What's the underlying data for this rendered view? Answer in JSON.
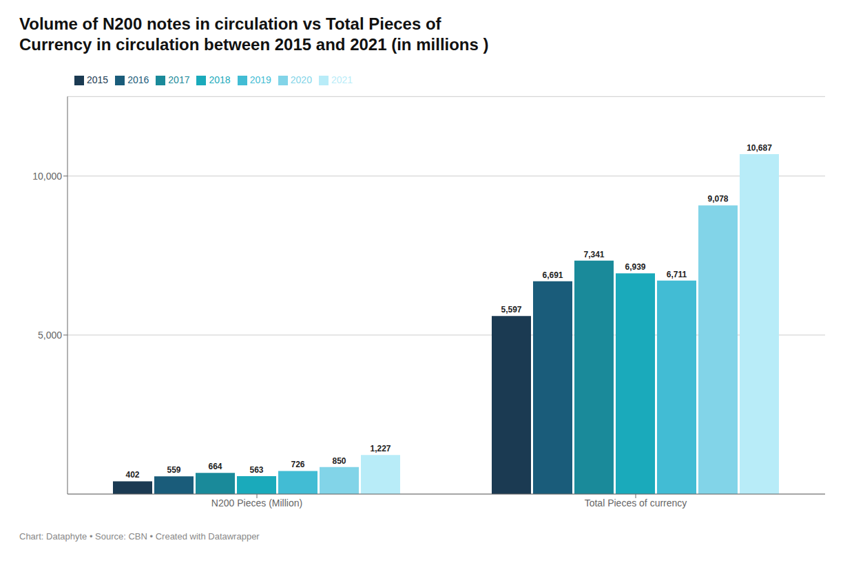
{
  "chart_data": {
    "type": "bar",
    "title": "Volume of N200 notes in circulation vs Total Pieces of\nCurrency in circulation between 2015 and 2021 (in millions )",
    "categories": [
      "N200 Pieces (Million)",
      "Total Pieces of currency"
    ],
    "series": [
      {
        "name": "2015",
        "color": "#1b3a52",
        "values": [
          402,
          5597
        ],
        "value_labels": [
          "402",
          "5,597"
        ]
      },
      {
        "name": "2016",
        "color": "#1a5c7a",
        "values": [
          559,
          6691
        ],
        "value_labels": [
          "559",
          "6,691"
        ]
      },
      {
        "name": "2017",
        "color": "#1a8a9a",
        "values": [
          664,
          7341
        ],
        "value_labels": [
          "664",
          "7,341"
        ]
      },
      {
        "name": "2018",
        "color": "#1aaabb",
        "values": [
          563,
          6939
        ],
        "value_labels": [
          "563",
          "6,939"
        ]
      },
      {
        "name": "2019",
        "color": "#42bcd4",
        "values": [
          726,
          6711
        ],
        "value_labels": [
          "726",
          "6,711"
        ]
      },
      {
        "name": "2020",
        "color": "#82d4e8",
        "values": [
          850,
          9078
        ],
        "value_labels": [
          "850",
          "9,078"
        ]
      },
      {
        "name": "2021",
        "color": "#b8ecf8",
        "values": [
          1227,
          10687
        ],
        "value_labels": [
          "1,227",
          "10,687"
        ]
      }
    ],
    "ylim": [
      0,
      12500
    ],
    "yticks": [
      {
        "value": 5000,
        "label": "5,000"
      },
      {
        "value": 10000,
        "label": "10,000"
      }
    ],
    "grid": true,
    "legend": "top",
    "data_labels": true,
    "annotations": [
      "Chart: Dataphyte • Source: CBN • Created with Datawrapper"
    ]
  }
}
